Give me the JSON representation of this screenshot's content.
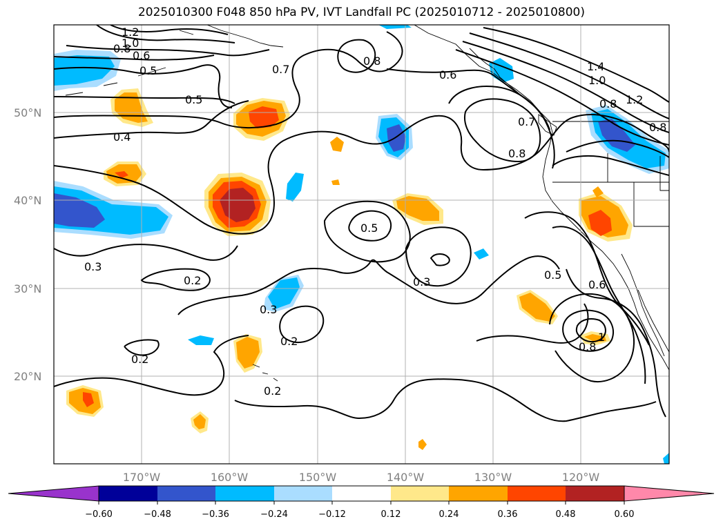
{
  "title": "2025010300 F048 850 hPa PV, IVT Landfall PC (2025010712 - 2025010800)",
  "lat_labels": [
    "50°N",
    "40°N",
    "30°N",
    "20°N"
  ],
  "lon_labels": [
    "170°W",
    "160°W",
    "150°W",
    "140°W",
    "130°W",
    "120°W"
  ],
  "colorbar": {
    "ticks": [
      "−0.60",
      "−0.48",
      "−0.36",
      "−0.24",
      "−0.12",
      "0.12",
      "0.24",
      "0.36",
      "0.48",
      "0.60"
    ],
    "colors": [
      "#9933cc",
      "#000099",
      "#3355cc",
      "#00bbff",
      "#aaddff",
      "#ffffff",
      "#ffe88a",
      "#ffa500",
      "#ff4500",
      "#b22222",
      "#ff88aa"
    ]
  },
  "contour_labels": [
    "1.2",
    "1.0",
    "0.8",
    "0.6",
    "0.5",
    "0.7",
    "0.8",
    "0.6",
    "1.4",
    "1.0",
    "0.8",
    "1.2",
    "0.8",
    "0.7",
    "0.8",
    "0.5",
    "0.4",
    "0.5",
    "0.3",
    "0.2",
    "0.3",
    "0.3",
    "0.2",
    "0.2",
    "0.2",
    "0.5",
    "0.6",
    "0.8",
    "1"
  ]
}
